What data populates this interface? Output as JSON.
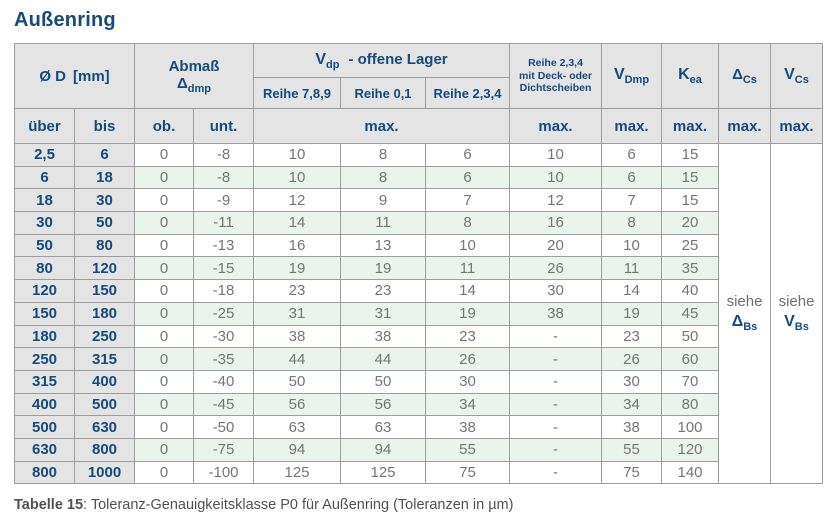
{
  "title": "Außenring",
  "colors": {
    "heading_blue": "#164a7c",
    "header_bg": "#e4e4e5",
    "row_green": "#eaf3ec",
    "data_gray": "#757577",
    "border_gray": "#9d9d9d"
  },
  "table": {
    "header": {
      "diameter_label": "Ø D",
      "diameter_unit": "[mm]",
      "abmass_line1": "Abmaß",
      "abmass_sym": "Δ",
      "abmass_sub": "dmp",
      "vdp_sym": "V",
      "vdp_sub": "dp",
      "vdp_rest": "-  offene Lager",
      "reihe789": "Reihe 7,8,9",
      "reihe01": "Reihe 0,1",
      "reihe234": "Reihe 2,3,4",
      "deck_line1": "Reihe 2,3,4",
      "deck_line2": "mit Deck- oder",
      "deck_line3": "Dichtscheiben",
      "vdmp_sym": "V",
      "vdmp_sub": "Dmp",
      "kea_sym": "K",
      "kea_sub": "ea",
      "dcs_sym": "Δ",
      "dcs_sub": "Cs",
      "vcs_sym": "V",
      "vcs_sub": "Cs",
      "ueber": "über",
      "bis": "bis",
      "ob": "ob.",
      "unt": "unt.",
      "max": "max."
    },
    "rows": [
      [
        "2,5",
        "6",
        "0",
        "-8",
        "10",
        "8",
        "6",
        "10",
        "6",
        "15"
      ],
      [
        "6",
        "18",
        "0",
        "-8",
        "10",
        "8",
        "6",
        "10",
        "6",
        "15"
      ],
      [
        "18",
        "30",
        "0",
        "-9",
        "12",
        "9",
        "7",
        "12",
        "7",
        "15"
      ],
      [
        "30",
        "50",
        "0",
        "-11",
        "14",
        "11",
        "8",
        "16",
        "8",
        "20"
      ],
      [
        "50",
        "80",
        "0",
        "-13",
        "16",
        "13",
        "10",
        "20",
        "10",
        "25"
      ],
      [
        "80",
        "120",
        "0",
        "-15",
        "19",
        "19",
        "11",
        "26",
        "11",
        "35"
      ],
      [
        "120",
        "150",
        "0",
        "-18",
        "23",
        "23",
        "14",
        "30",
        "14",
        "40"
      ],
      [
        "150",
        "180",
        "0",
        "-25",
        "31",
        "31",
        "19",
        "38",
        "19",
        "45"
      ],
      [
        "180",
        "250",
        "0",
        "-30",
        "38",
        "38",
        "23",
        "-",
        "23",
        "50"
      ],
      [
        "250",
        "315",
        "0",
        "-35",
        "44",
        "44",
        "26",
        "-",
        "26",
        "60"
      ],
      [
        "315",
        "400",
        "0",
        "-40",
        "50",
        "50",
        "30",
        "-",
        "30",
        "70"
      ],
      [
        "400",
        "500",
        "0",
        "-45",
        "56",
        "56",
        "34",
        "-",
        "34",
        "80"
      ],
      [
        "500",
        "630",
        "0",
        "-50",
        "63",
        "63",
        "38",
        "-",
        "38",
        "100"
      ],
      [
        "630",
        "800",
        "0",
        "-75",
        "94",
        "94",
        "55",
        "-",
        "55",
        "120"
      ],
      [
        "800",
        "1000",
        "0",
        "-100",
        "125",
        "125",
        "75",
        "-",
        "75",
        "140"
      ]
    ],
    "siehe": {
      "label": "siehe",
      "delta_sym": "Δ",
      "delta_sub": "Bs",
      "v_sym": "V",
      "v_sub": "Bs"
    }
  },
  "caption": {
    "bold": "Tabelle 15",
    "rest": ": Toleranz-Genauigkeitsklasse P0 für Außenring (Toleranzen in µm)"
  }
}
